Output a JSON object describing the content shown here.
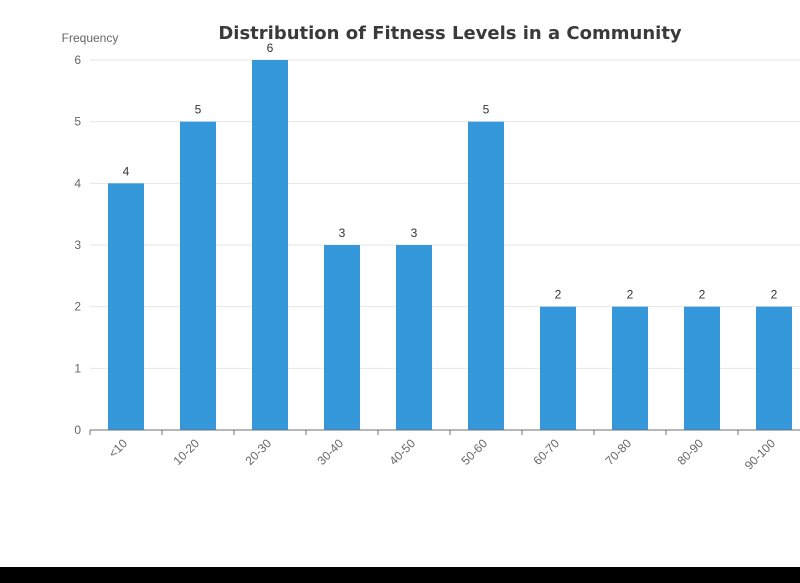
{
  "chart_data": {
    "type": "bar",
    "title": "Distribution of Fitness Levels in a Community",
    "xlabel": "",
    "ylabel": "Frequency",
    "categories": [
      "<10",
      "10-20",
      "20-30",
      "30-40",
      "40-50",
      "50-60",
      "60-70",
      "70-80",
      "80-90",
      "90-100"
    ],
    "values": [
      4,
      5,
      6,
      3,
      3,
      5,
      2,
      2,
      2,
      2
    ],
    "ylim": [
      0,
      6
    ],
    "yticks": [
      0,
      1,
      2,
      3,
      4,
      5,
      6
    ],
    "grid": "horizontal",
    "legend": "none",
    "bar_color": "#3498db",
    "data_labels": true
  }
}
